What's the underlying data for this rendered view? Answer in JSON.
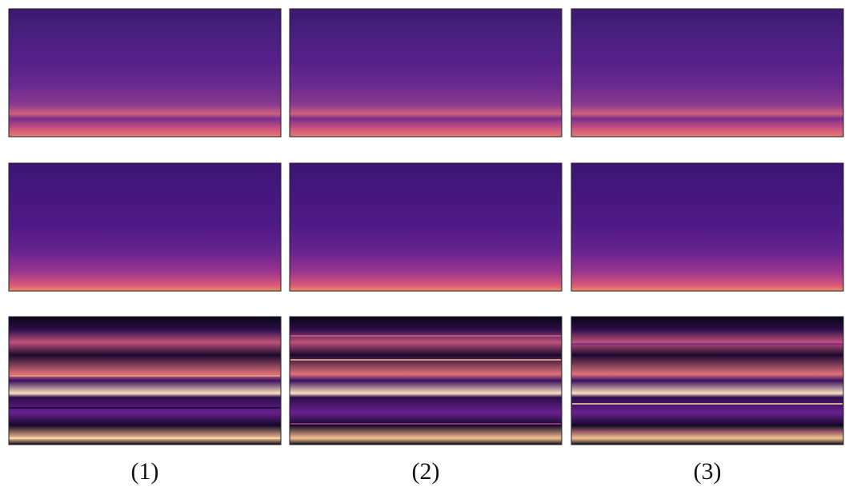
{
  "labels": [
    "(1)",
    "(2)",
    "(3)"
  ]
}
